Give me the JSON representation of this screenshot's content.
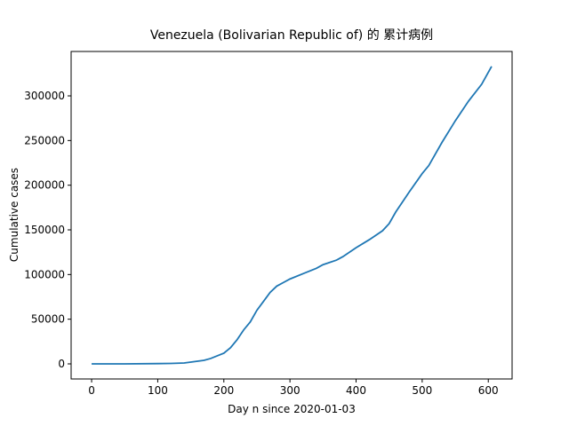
{
  "chart_data": {
    "type": "line",
    "title": "Venezuela (Bolivarian Republic of) 的 累计病例",
    "x_label": "Day n since 2020-01-03",
    "y_label": "Cumulative cases",
    "x": [
      0,
      50,
      100,
      120,
      140,
      150,
      160,
      170,
      180,
      190,
      200,
      210,
      220,
      230,
      240,
      250,
      260,
      270,
      280,
      290,
      300,
      320,
      340,
      350,
      370,
      380,
      400,
      420,
      440,
      450,
      460,
      480,
      500,
      510,
      530,
      550,
      570,
      590,
      605
    ],
    "values": [
      0,
      0,
      300,
      500,
      1000,
      2000,
      3000,
      4000,
      6000,
      9000,
      12000,
      18000,
      27000,
      38000,
      47000,
      60000,
      70000,
      80000,
      87000,
      91000,
      95000,
      101000,
      107000,
      111000,
      116000,
      120000,
      130000,
      139000,
      149000,
      157000,
      170000,
      192000,
      213000,
      222000,
      248000,
      272000,
      294000,
      313000,
      333000
    ],
    "color": "#1f77b4",
    "xlim": [
      -31,
      636
    ],
    "ylim": [
      -16900,
      349700
    ],
    "xticks": [
      0,
      100,
      200,
      300,
      400,
      500,
      600
    ],
    "yticks": [
      0,
      50000,
      100000,
      150000,
      200000,
      250000,
      300000
    ]
  }
}
